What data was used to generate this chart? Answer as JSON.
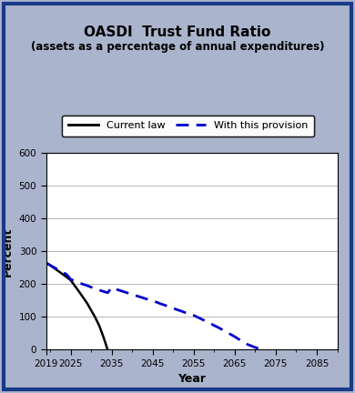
{
  "title": "OASDI  Trust Fund Ratio",
  "subtitle": "(assets as a percentage of annual expenditures)",
  "xlabel": "Year",
  "ylabel": "Percent",
  "background_color": "#aab4cc",
  "plot_bg_color": "#ffffff",
  "border_color": "#1a3a8a",
  "ylim": [
    0,
    600
  ],
  "yticks": [
    0,
    100,
    200,
    300,
    400,
    500,
    600
  ],
  "xlim": [
    2019,
    2090
  ],
  "xticks": [
    2019,
    2025,
    2035,
    2045,
    2055,
    2065,
    2075,
    2085
  ],
  "current_law_x": [
    2019,
    2020,
    2021,
    2022,
    2023,
    2024,
    2025,
    2026,
    2027,
    2028,
    2029,
    2030,
    2031,
    2032,
    2033,
    2034
  ],
  "current_law_y": [
    265,
    258,
    249,
    240,
    231,
    222,
    212,
    195,
    178,
    160,
    142,
    120,
    98,
    72,
    38,
    0
  ],
  "provision_x": [
    2019,
    2020,
    2021,
    2022,
    2023,
    2024,
    2025,
    2026,
    2027,
    2028,
    2029,
    2030,
    2031,
    2032,
    2033,
    2034,
    2035,
    2036,
    2037,
    2038,
    2039,
    2040,
    2041,
    2042,
    2043,
    2044,
    2045,
    2046,
    2047,
    2048,
    2049,
    2050,
    2051,
    2052,
    2053,
    2054,
    2055,
    2056,
    2057,
    2058,
    2059,
    2060,
    2061,
    2062,
    2063,
    2064,
    2065,
    2066,
    2067,
    2068,
    2069,
    2070,
    2071,
    2072
  ],
  "provision_y": [
    265,
    258,
    251,
    244,
    237,
    230,
    215,
    210,
    205,
    200,
    196,
    191,
    186,
    182,
    178,
    174,
    190,
    185,
    181,
    177,
    173,
    170,
    165,
    161,
    157,
    153,
    149,
    145,
    140,
    136,
    131,
    127,
    122,
    118,
    113,
    108,
    105,
    99,
    93,
    87,
    81,
    74,
    68,
    61,
    54,
    47,
    40,
    32,
    24,
    17,
    12,
    7,
    3,
    0
  ],
  "current_law_color": "#000000",
  "provision_color": "#0000cc",
  "legend_current_law": "Current law",
  "legend_provision": "With this provision",
  "grid_color": "#999999",
  "tick_color": "#000000",
  "minor_tick_interval": 1
}
